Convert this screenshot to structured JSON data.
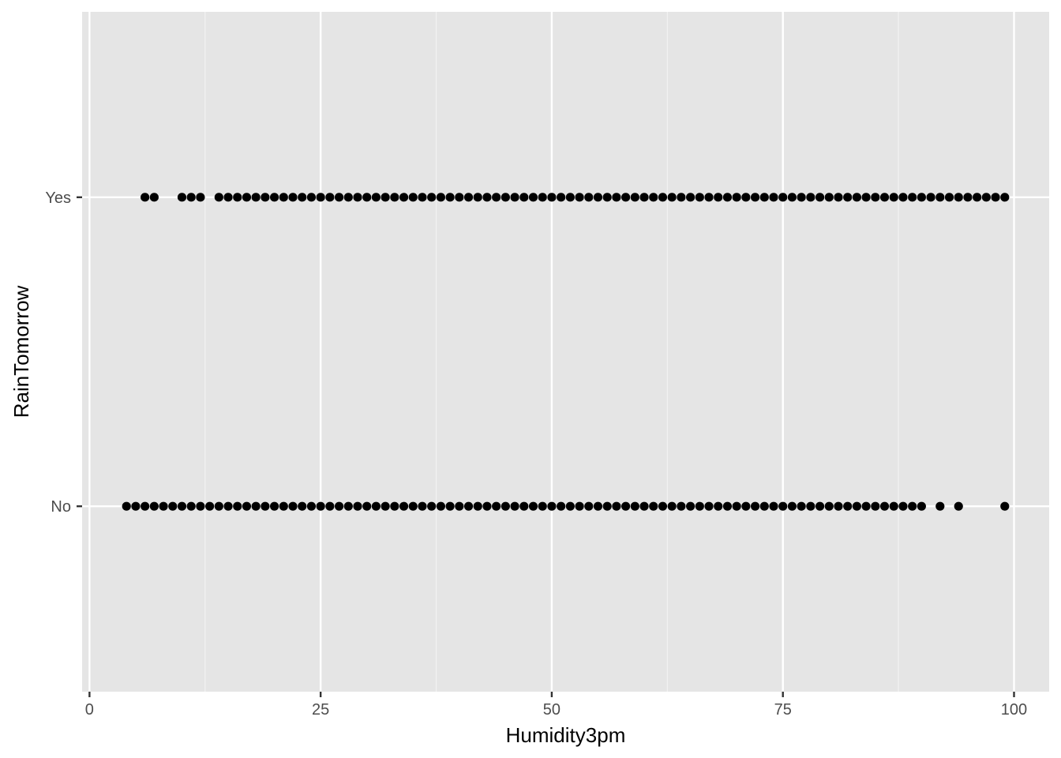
{
  "chart_data": {
    "type": "scatter",
    "title": "",
    "xlabel": "Humidity3pm",
    "ylabel": "RainTomorrow",
    "xlim": [
      -0.8,
      103.8
    ],
    "x_ticks": [
      0,
      25,
      50,
      75,
      100
    ],
    "x_tick_labels": [
      "0",
      "25",
      "50",
      "75",
      "100"
    ],
    "categories": [
      "No",
      "Yes"
    ],
    "grid": true,
    "legend": "none",
    "colors": {
      "panel_background": "#e5e5e5",
      "grid_major": "#ffffff",
      "grid_minor": "#f2f2f2",
      "point": "#000000",
      "tick_label": "#4d4d4d",
      "axis_title": "#000000"
    },
    "series": [
      {
        "category": "No",
        "x": [
          4,
          5,
          6,
          7,
          8,
          9,
          10,
          11,
          12,
          13,
          14,
          15,
          16,
          17,
          18,
          19,
          20,
          21,
          22,
          23,
          24,
          25,
          26,
          27,
          28,
          29,
          30,
          31,
          32,
          33,
          34,
          35,
          36,
          37,
          38,
          39,
          40,
          41,
          42,
          43,
          44,
          45,
          46,
          47,
          48,
          49,
          50,
          51,
          52,
          53,
          54,
          55,
          56,
          57,
          58,
          59,
          60,
          61,
          62,
          63,
          64,
          65,
          66,
          67,
          68,
          69,
          70,
          71,
          72,
          73,
          74,
          75,
          76,
          77,
          78,
          79,
          80,
          81,
          82,
          83,
          84,
          85,
          86,
          87,
          88,
          89,
          90,
          92,
          94,
          99
        ]
      },
      {
        "category": "Yes",
        "x": [
          6,
          7,
          10,
          11,
          12,
          14,
          15,
          16,
          17,
          18,
          19,
          20,
          21,
          22,
          23,
          24,
          25,
          26,
          27,
          28,
          29,
          30,
          31,
          32,
          33,
          34,
          35,
          36,
          37,
          38,
          39,
          40,
          41,
          42,
          43,
          44,
          45,
          46,
          47,
          48,
          49,
          50,
          51,
          52,
          53,
          54,
          55,
          56,
          57,
          58,
          59,
          60,
          61,
          62,
          63,
          64,
          65,
          66,
          67,
          68,
          69,
          70,
          71,
          72,
          73,
          74,
          75,
          76,
          77,
          78,
          79,
          80,
          81,
          82,
          83,
          84,
          85,
          86,
          87,
          88,
          89,
          90,
          91,
          92,
          93,
          94,
          95,
          96,
          97,
          98,
          99
        ]
      }
    ]
  }
}
